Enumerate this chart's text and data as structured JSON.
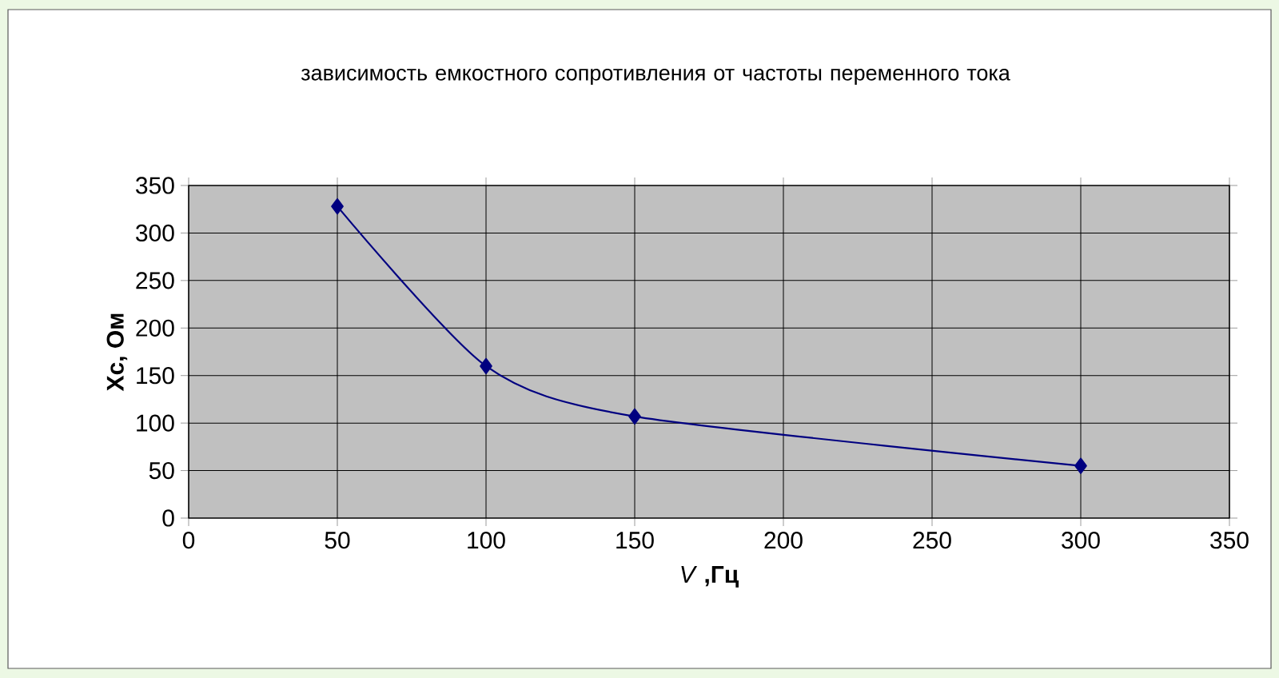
{
  "chart_data": {
    "type": "line",
    "title": "зависимость емкостного сопротивления от частоты переменного тока",
    "xlabel": "*V* **,Гц**",
    "ylabel": "Xc, Ом",
    "x": [
      50,
      100,
      150,
      300
    ],
    "series": [
      {
        "color": "#000080",
        "values": [
          328,
          160,
          107,
          55
        ]
      }
    ],
    "xlim": [
      0,
      350
    ],
    "ylim": [
      0,
      350
    ],
    "xticks": [
      0,
      50,
      100,
      150,
      200,
      250,
      300,
      350
    ],
    "yticks": [
      0,
      50,
      100,
      150,
      200,
      250,
      300,
      350
    ],
    "grid": true,
    "marker": "diamond"
  }
}
